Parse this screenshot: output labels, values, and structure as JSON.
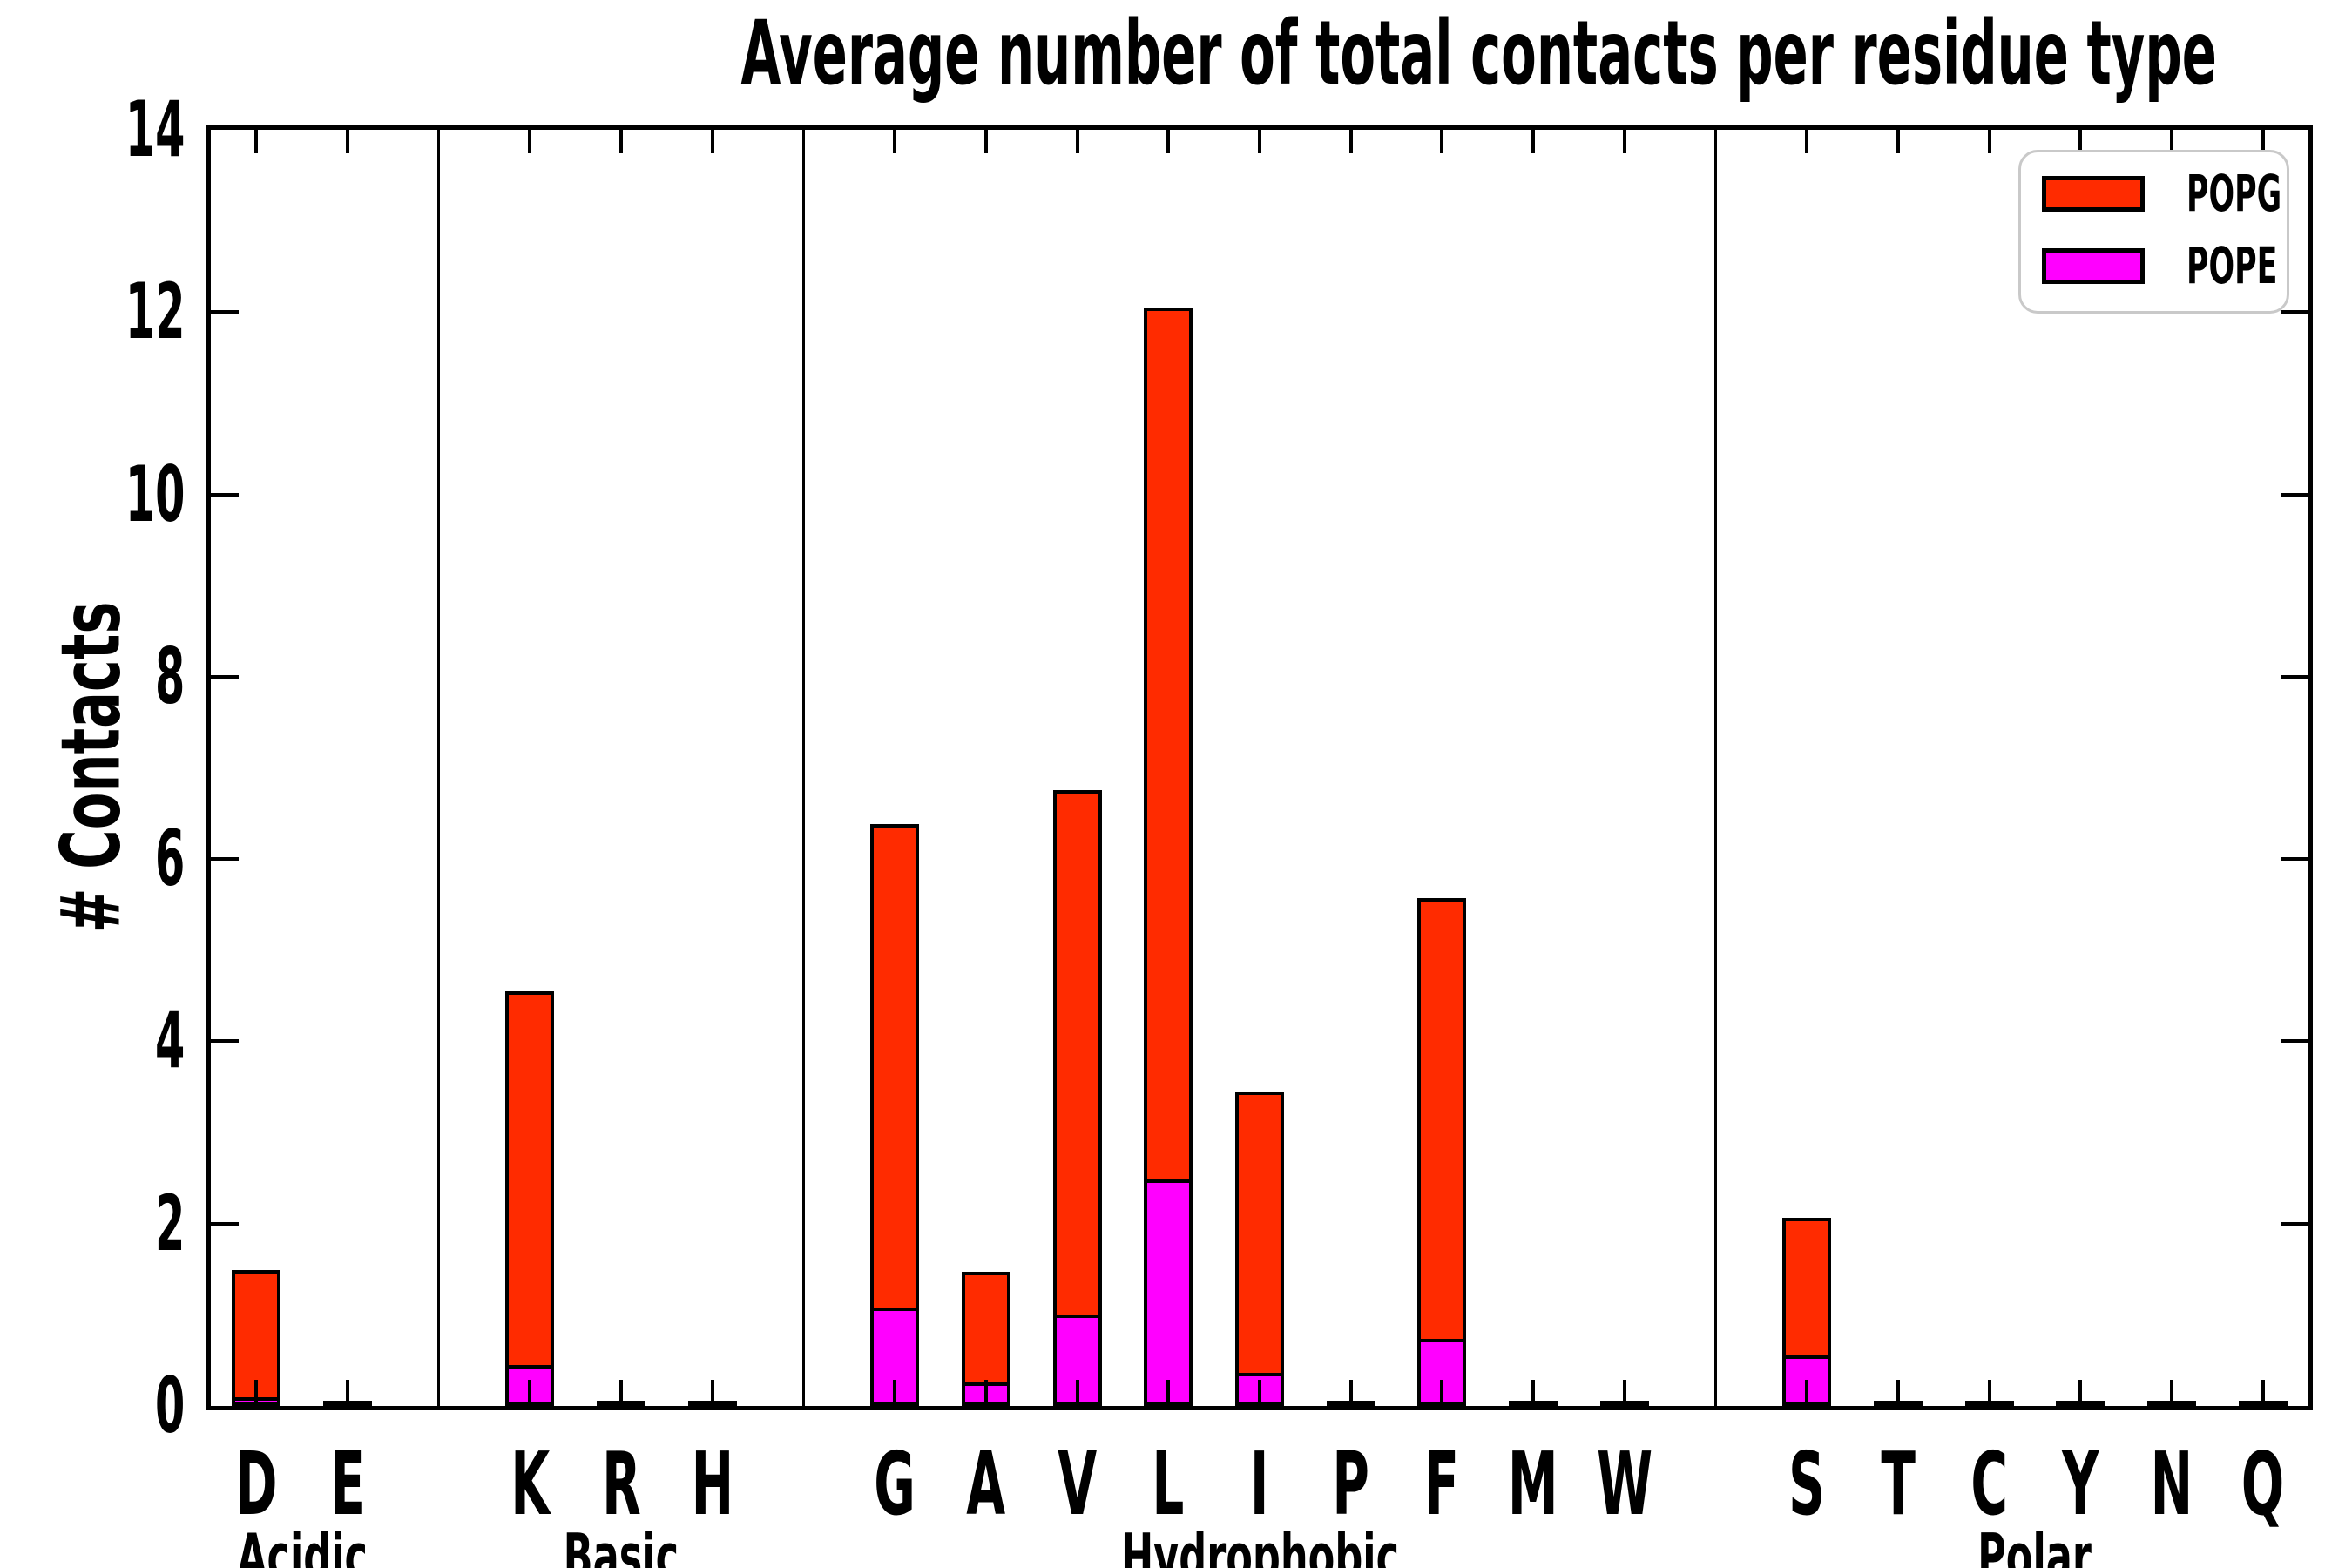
{
  "title": "Average number of total contacts per residue type",
  "ylabel": "# Contacts",
  "colors": {
    "popg": "#FF2B00",
    "pope": "#FF00FF",
    "axis": "#000000",
    "legend_border": "#C9C9C9",
    "background": "#FFFFFF"
  },
  "legend": {
    "position": "upper-right",
    "items": [
      {
        "label": "POPG",
        "color_key": "popg"
      },
      {
        "label": "POPE",
        "color_key": "pope"
      }
    ]
  },
  "y_axis": {
    "min": 0,
    "max": 14,
    "tick_step": 2,
    "tick_labels": [
      "0",
      "2",
      "4",
      "6",
      "8",
      "10",
      "12",
      "14"
    ]
  },
  "chart_data": {
    "type": "bar",
    "stacked": true,
    "stack_order_bottom_to_top": [
      "POPE",
      "POPG"
    ],
    "title": "Average number of total contacts per residue type",
    "xlabel": "",
    "ylabel": "# Contacts",
    "ylim": [
      0,
      14
    ],
    "grid": false,
    "legend_position": "upper-right",
    "groups": [
      {
        "label": "Acidic",
        "residues": [
          "D",
          "E"
        ]
      },
      {
        "label": "Basic",
        "residues": [
          "K",
          "R",
          "H"
        ]
      },
      {
        "label": "Hydrophobic",
        "residues": [
          "G",
          "A",
          "V",
          "L",
          "I",
          "P",
          "F",
          "M",
          "W"
        ]
      },
      {
        "label": "Polar",
        "residues": [
          "S",
          "T",
          "C",
          "Y",
          "N",
          "Q"
        ]
      }
    ],
    "categories": [
      "D",
      "E",
      "K",
      "R",
      "H",
      "G",
      "A",
      "V",
      "L",
      "I",
      "P",
      "F",
      "M",
      "W",
      "S",
      "T",
      "C",
      "Y",
      "N",
      "Q"
    ],
    "series": [
      {
        "name": "POPE",
        "values": [
          0.1,
          0,
          0.45,
          0,
          0,
          1.08,
          0.26,
          1.0,
          2.48,
          0.36,
          0,
          0.74,
          0,
          0,
          0.55,
          0,
          0,
          0,
          0,
          0
        ]
      },
      {
        "name": "POPG",
        "values": [
          1.4,
          0,
          4.1,
          0,
          0,
          5.3,
          1.21,
          5.75,
          9.57,
          3.09,
          0,
          4.84,
          0,
          0,
          1.51,
          0,
          0,
          0,
          0,
          0
        ]
      }
    ],
    "totals": [
      1.5,
      0,
      4.55,
      0,
      0,
      6.38,
      1.47,
      6.75,
      12.05,
      3.45,
      0,
      5.58,
      0,
      0,
      2.06,
      0,
      0,
      0,
      0,
      0
    ]
  }
}
